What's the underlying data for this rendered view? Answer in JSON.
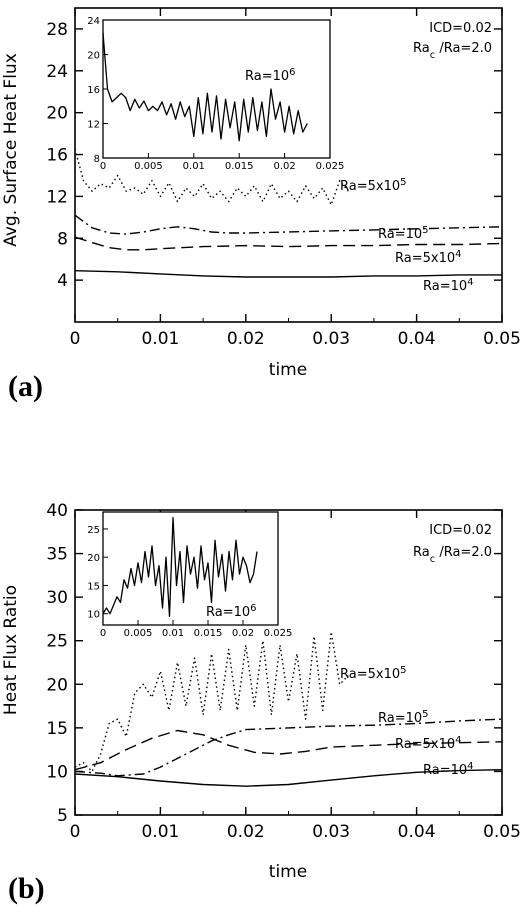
{
  "chart_data": [
    {
      "type": "line",
      "panel_label": "(a)",
      "xlabel": "time",
      "ylabel": "Avg. Surface Heat Flux",
      "xlim": [
        0,
        0.05
      ],
      "ylim": [
        0,
        30
      ],
      "x_ticks": [
        "0",
        "0.01",
        "0.02",
        "0.03",
        "0.04",
        "0.05"
      ],
      "y_ticks": [
        "4",
        "8",
        "12",
        "16",
        "20",
        "24",
        "28"
      ],
      "annotation_lines": [
        "ICD=0.02",
        "Ra_c /Ra=2.0"
      ],
      "series": [
        {
          "name": "Ra=5x10^5",
          "style": "dotted",
          "x": [
            0,
            0.001,
            0.002,
            0.003,
            0.004,
            0.005,
            0.006,
            0.007,
            0.008,
            0.009,
            0.01,
            0.011,
            0.012,
            0.013,
            0.014,
            0.015,
            0.016,
            0.017,
            0.018,
            0.019,
            0.02,
            0.021,
            0.022,
            0.023,
            0.024,
            0.025,
            0.026,
            0.027,
            0.028,
            0.029,
            0.03,
            0.031,
            0.032
          ],
          "y": [
            16.5,
            13.5,
            12.5,
            13.2,
            12.8,
            14.0,
            12.5,
            12.8,
            12.2,
            13.5,
            12.0,
            13.3,
            11.5,
            12.8,
            12.0,
            13.2,
            11.8,
            12.5,
            11.5,
            12.8,
            12.0,
            13.0,
            11.5,
            13.2,
            11.8,
            12.5,
            11.5,
            13.0,
            11.8,
            12.8,
            11.2,
            13.5,
            12.5
          ]
        },
        {
          "name": "Ra=10^5",
          "style": "dashdot",
          "x": [
            0,
            0.002,
            0.004,
            0.006,
            0.008,
            0.01,
            0.012,
            0.014,
            0.016,
            0.018,
            0.02,
            0.025,
            0.03,
            0.035,
            0.04,
            0.045,
            0.05
          ],
          "y": [
            10.2,
            9.0,
            8.5,
            8.4,
            8.6,
            8.9,
            9.1,
            8.9,
            8.6,
            8.5,
            8.5,
            8.6,
            8.7,
            8.8,
            8.9,
            9.0,
            9.1
          ]
        },
        {
          "name": "Ra=5x10^4",
          "style": "dashed",
          "x": [
            0,
            0.002,
            0.004,
            0.006,
            0.008,
            0.01,
            0.015,
            0.02,
            0.025,
            0.03,
            0.035,
            0.04,
            0.045,
            0.05
          ],
          "y": [
            8.1,
            7.6,
            7.1,
            6.9,
            6.9,
            7.0,
            7.2,
            7.3,
            7.2,
            7.3,
            7.3,
            7.4,
            7.4,
            7.5
          ]
        },
        {
          "name": "Ra=10^4",
          "style": "solid",
          "x": [
            0,
            0.005,
            0.01,
            0.015,
            0.02,
            0.025,
            0.03,
            0.035,
            0.04,
            0.045,
            0.05
          ],
          "y": [
            4.9,
            4.8,
            4.6,
            4.4,
            4.3,
            4.3,
            4.3,
            4.4,
            4.4,
            4.5,
            4.5
          ]
        }
      ],
      "labels": [
        {
          "series": "Ra=5x10^5",
          "base": "Ra=5x10",
          "exp": "5"
        },
        {
          "series": "Ra=10^5",
          "base": "Ra=10",
          "exp": "5"
        },
        {
          "series": "Ra=5x10^4",
          "base": "Ra=5x10",
          "exp": "4"
        },
        {
          "series": "Ra=10^4",
          "base": "Ra=10",
          "exp": "4"
        }
      ],
      "inset": {
        "xlim": [
          0,
          0.025
        ],
        "ylim": [
          8,
          24
        ],
        "x_ticks": [
          "0",
          "0.005",
          "0.01",
          "0.015",
          "0.02",
          "0.025"
        ],
        "y_ticks": [
          "8",
          "12",
          "16",
          "20",
          "24"
        ],
        "label_base": "Ra=10",
        "label_exp": "6",
        "series": {
          "name": "Ra=10^6",
          "x": [
            0,
            0.0005,
            0.001,
            0.0015,
            0.002,
            0.0025,
            0.003,
            0.0035,
            0.004,
            0.0045,
            0.005,
            0.0055,
            0.006,
            0.0065,
            0.007,
            0.0075,
            0.008,
            0.0085,
            0.009,
            0.0095,
            0.01,
            0.0105,
            0.011,
            0.0115,
            0.012,
            0.0125,
            0.013,
            0.0135,
            0.014,
            0.0145,
            0.015,
            0.0155,
            0.016,
            0.0165,
            0.017,
            0.0175,
            0.018,
            0.0185,
            0.019,
            0.0195,
            0.02,
            0.0205,
            0.021,
            0.0215,
            0.022,
            0.0225
          ],
          "y": [
            22.5,
            16.0,
            14.5,
            15.0,
            15.5,
            15.0,
            13.5,
            14.8,
            13.8,
            14.6,
            13.5,
            14.0,
            13.5,
            14.5,
            13.0,
            14.3,
            12.5,
            14.5,
            12.8,
            14.0,
            10.5,
            15.0,
            10.8,
            15.5,
            11.0,
            15.2,
            10.2,
            14.8,
            11.5,
            14.5,
            10.0,
            14.8,
            11.0,
            15.0,
            11.2,
            14.5,
            10.5,
            16.0,
            12.5,
            14.5,
            11.0,
            14.0,
            10.8,
            13.5,
            11.0,
            12.0
          ]
        }
      }
    },
    {
      "type": "line",
      "panel_label": "(b)",
      "xlabel": "time",
      "ylabel": "Heat Flux Ratio",
      "xlim": [
        0,
        0.05
      ],
      "ylim": [
        5,
        40
      ],
      "x_ticks": [
        "0",
        "0.01",
        "0.02",
        "0.03",
        "0.04",
        "0.05"
      ],
      "y_ticks": [
        "5",
        "10",
        "15",
        "20",
        "25",
        "30",
        "35",
        "40"
      ],
      "annotation_lines": [
        "ICD=0.02",
        "Ra_c /Ra=2.0"
      ],
      "series": [
        {
          "name": "Ra=5x10^5",
          "style": "dotted",
          "x": [
            0,
            0.001,
            0.002,
            0.003,
            0.004,
            0.005,
            0.006,
            0.007,
            0.008,
            0.009,
            0.01,
            0.011,
            0.012,
            0.013,
            0.014,
            0.015,
            0.016,
            0.017,
            0.018,
            0.019,
            0.02,
            0.021,
            0.022,
            0.023,
            0.024,
            0.025,
            0.026,
            0.027,
            0.028,
            0.029,
            0.03,
            0.031,
            0.032
          ],
          "y": [
            10.5,
            11.0,
            10.0,
            12.0,
            15.5,
            16.0,
            14.0,
            19.0,
            20.0,
            18.5,
            21.5,
            17.0,
            22.5,
            17.5,
            23.0,
            16.5,
            23.5,
            17.0,
            24.0,
            17.0,
            24.5,
            17.5,
            25.0,
            16.5,
            24.5,
            18.0,
            23.5,
            16.0,
            25.5,
            17.0,
            26.0,
            20.0,
            21.0
          ]
        },
        {
          "name": "Ra=10^5",
          "style": "dashdot",
          "x": [
            0,
            0.003,
            0.005,
            0.008,
            0.01,
            0.012,
            0.014,
            0.016,
            0.018,
            0.02,
            0.025,
            0.03,
            0.035,
            0.04,
            0.045,
            0.05
          ],
          "y": [
            10.0,
            9.8,
            9.5,
            9.7,
            10.5,
            11.5,
            12.5,
            13.5,
            14.2,
            14.8,
            15.0,
            15.2,
            15.3,
            15.5,
            15.8,
            16.0
          ]
        },
        {
          "name": "Ra=5x10^4",
          "style": "dashed",
          "x": [
            0,
            0.003,
            0.006,
            0.009,
            0.012,
            0.015,
            0.018,
            0.021,
            0.024,
            0.027,
            0.03,
            0.035,
            0.04,
            0.045,
            0.05
          ],
          "y": [
            10.2,
            11.0,
            12.5,
            13.8,
            14.7,
            14.2,
            13.0,
            12.2,
            12.0,
            12.3,
            12.8,
            13.0,
            13.2,
            13.3,
            13.4
          ]
        },
        {
          "name": "Ra=10^4",
          "style": "solid",
          "x": [
            0,
            0.005,
            0.01,
            0.015,
            0.02,
            0.025,
            0.03,
            0.035,
            0.04,
            0.045,
            0.05
          ],
          "y": [
            9.7,
            9.4,
            8.9,
            8.5,
            8.3,
            8.5,
            9.0,
            9.5,
            9.9,
            10.1,
            10.2
          ]
        }
      ],
      "labels": [
        {
          "series": "Ra=5x10^5",
          "base": "Ra=5x10",
          "exp": "5"
        },
        {
          "series": "Ra=10^5",
          "base": "Ra=10",
          "exp": "5"
        },
        {
          "series": "Ra=5x10^4",
          "base": "Ra=5x10",
          "exp": "4"
        },
        {
          "series": "Ra=10^4",
          "base": "Ra=10",
          "exp": "4"
        }
      ],
      "inset": {
        "xlim": [
          0,
          0.025
        ],
        "ylim": [
          8,
          28
        ],
        "x_ticks": [
          "0",
          "0.005",
          "0.01",
          "0.015",
          "0.02",
          "0.025"
        ],
        "y_ticks": [
          "10",
          "15",
          "20",
          "25"
        ],
        "label_base": "Ra=10",
        "label_exp": "6",
        "series": {
          "name": "Ra=10^6",
          "x": [
            0,
            0.0005,
            0.001,
            0.0015,
            0.002,
            0.0025,
            0.003,
            0.0035,
            0.004,
            0.0045,
            0.005,
            0.0055,
            0.006,
            0.0065,
            0.007,
            0.0075,
            0.008,
            0.0085,
            0.009,
            0.0095,
            0.01,
            0.0105,
            0.011,
            0.0115,
            0.012,
            0.0125,
            0.013,
            0.0135,
            0.014,
            0.0145,
            0.015,
            0.0155,
            0.016,
            0.0165,
            0.017,
            0.0175,
            0.018,
            0.0185,
            0.019,
            0.0195,
            0.02,
            0.0205,
            0.021,
            0.0215,
            0.022
          ],
          "y": [
            10.0,
            11.0,
            10.0,
            11.5,
            13.0,
            12.0,
            16.0,
            14.5,
            18.0,
            15.0,
            19.0,
            15.5,
            21.0,
            16.5,
            22.0,
            15.0,
            18.5,
            11.0,
            20.0,
            9.5,
            27.0,
            15.0,
            21.0,
            12.0,
            22.0,
            17.0,
            20.0,
            14.5,
            22.0,
            16.0,
            19.0,
            12.0,
            23.0,
            16.5,
            20.5,
            14.0,
            21.0,
            16.0,
            23.0,
            17.0,
            20.0,
            18.5,
            15.5,
            17.0,
            21.0
          ]
        }
      }
    }
  ]
}
